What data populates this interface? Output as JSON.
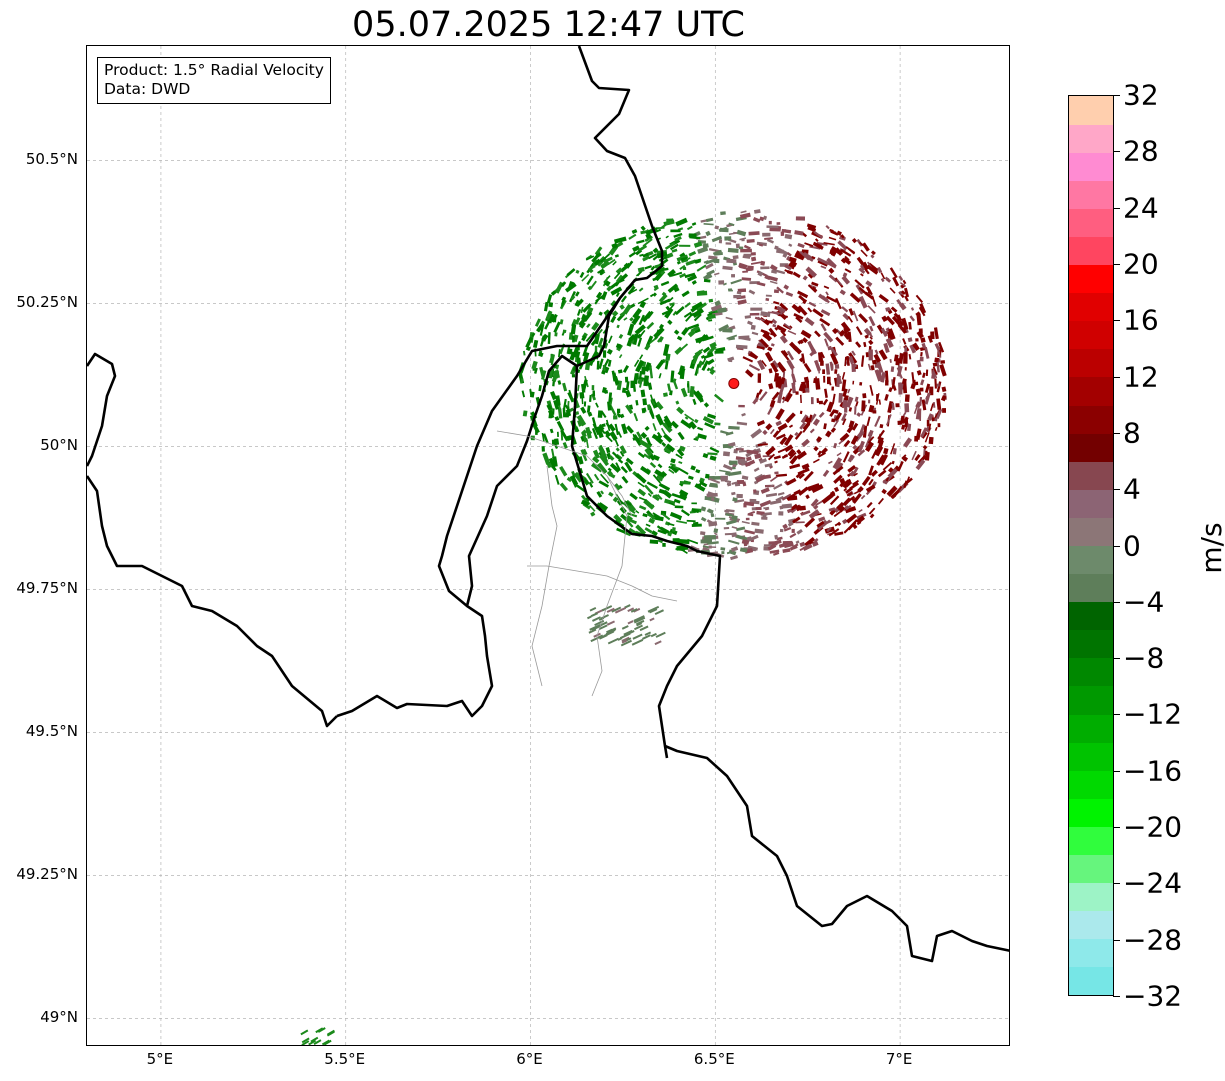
{
  "title": "05.07.2025 12:47 UTC",
  "info": {
    "product": "Product: 1.5° Radial Velocity",
    "data": "Data: DWD"
  },
  "axes": {
    "x_ticks": [
      {
        "value": 5.0,
        "label": "5°E"
      },
      {
        "value": 5.5,
        "label": "5.5°E"
      },
      {
        "value": 6.0,
        "label": "6°E"
      },
      {
        "value": 6.5,
        "label": "6.5°E"
      },
      {
        "value": 7.0,
        "label": "7°E"
      }
    ],
    "y_ticks": [
      {
        "value": 50.5,
        "label": "50.5°N"
      },
      {
        "value": 50.25,
        "label": "50.25°N"
      },
      {
        "value": 50.0,
        "label": "50°N"
      },
      {
        "value": 49.75,
        "label": "49.75°N"
      },
      {
        "value": 49.5,
        "label": "49.5°N"
      },
      {
        "value": 49.25,
        "label": "49.25°N"
      },
      {
        "value": 49.0,
        "label": "49°N"
      }
    ],
    "lon_range": [
      4.8,
      7.3
    ],
    "lat_range": [
      48.95,
      50.7
    ],
    "grid": true
  },
  "radar_site": {
    "lon": 6.55,
    "lat": 50.11,
    "color": "#ff1a1a"
  },
  "colorbar": {
    "unit": "m/s",
    "min": -32,
    "max": 32,
    "ticks": [
      {
        "value": 32,
        "label": "32"
      },
      {
        "value": 28,
        "label": "28"
      },
      {
        "value": 24,
        "label": "24"
      },
      {
        "value": 20,
        "label": "20"
      },
      {
        "value": 16,
        "label": "16"
      },
      {
        "value": 12,
        "label": "12"
      },
      {
        "value": 8,
        "label": "8"
      },
      {
        "value": 4,
        "label": "4"
      },
      {
        "value": 0,
        "label": "0"
      },
      {
        "value": -4,
        "label": "−4"
      },
      {
        "value": -8,
        "label": "−8"
      },
      {
        "value": -12,
        "label": "−12"
      },
      {
        "value": -16,
        "label": "−16"
      },
      {
        "value": -20,
        "label": "−20"
      },
      {
        "value": -24,
        "label": "−24"
      },
      {
        "value": -28,
        "label": "−28"
      },
      {
        "value": -32,
        "label": "−32"
      }
    ],
    "colors": [
      "#76e6e6",
      "#8ee9ea",
      "#abe9ec",
      "#9df3c6",
      "#66f57d",
      "#30fd3d",
      "#00f300",
      "#00d900",
      "#00c300",
      "#00ad00",
      "#009900",
      "#008800",
      "#007400",
      "#006400",
      "#5e7e5a",
      "#6d8a6b",
      "#8c7677",
      "#8c6474",
      "#874750",
      "#730000",
      "#8b0000",
      "#a30000",
      "#bb0000",
      "#d00000",
      "#e10000",
      "#ff0000",
      "#ff4560",
      "#ff5e80",
      "#ff77a3",
      "#ff8bd2",
      "#ffa7c8",
      "#ffcfae"
    ]
  },
  "velocity_colors": {
    "strong_away": "#800000",
    "away": "#8b4a55",
    "weak_away": "#8a6a70",
    "weak_toward": "#5e7e5a",
    "toward": "#1b8a1b",
    "strong_toward": "#007a00"
  }
}
